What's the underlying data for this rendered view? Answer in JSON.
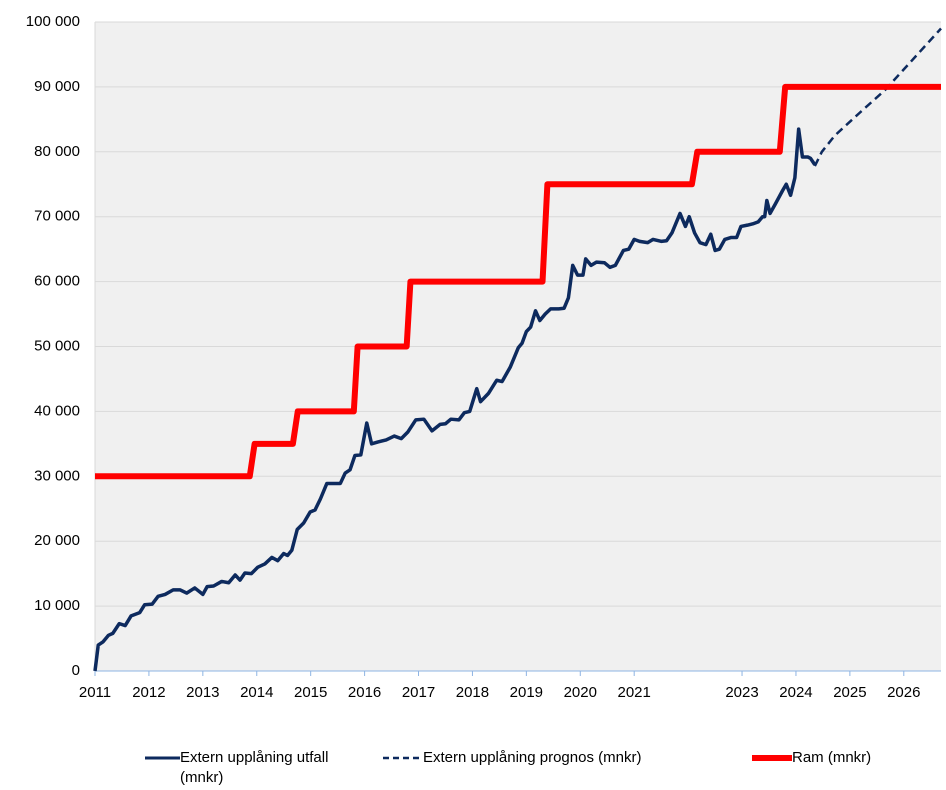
{
  "chart_data": {
    "type": "line",
    "xlim": [
      2011,
      2026.69
    ],
    "xticks": [
      2011,
      2012,
      2013,
      2014,
      2015,
      2016,
      2017,
      2018,
      2019,
      2020,
      2021,
      2023,
      2024,
      2025,
      2026
    ],
    "ylim": [
      0,
      100000
    ],
    "yticks": [
      0,
      {
        "value": 10000,
        "label": "10 000"
      },
      {
        "value": 20000,
        "label": "20 000"
      },
      {
        "value": 30000,
        "label": "30 000"
      },
      {
        "value": 40000,
        "label": "40 000"
      },
      {
        "value": 50000,
        "label": "50 000"
      },
      {
        "value": 60000,
        "label": "60 000"
      },
      {
        "value": 70000,
        "label": "70 000"
      },
      {
        "value": 80000,
        "label": "80 000"
      },
      {
        "value": 90000,
        "label": "90 000"
      },
      {
        "value": 100000,
        "label": "100 000"
      }
    ],
    "grid": true,
    "series": [
      {
        "name": "Extern upplåning utfall (mnkr)",
        "color": "#0d2a5e",
        "style": "solid",
        "x": [
          2011.0,
          2011.06,
          2011.15,
          2011.25,
          2011.33,
          2011.45,
          2011.56,
          2011.67,
          2011.83,
          2011.92,
          2012.06,
          2012.17,
          2012.3,
          2012.45,
          2012.58,
          2012.7,
          2012.85,
          2013.0,
          2013.08,
          2013.2,
          2013.35,
          2013.48,
          2013.6,
          2013.69,
          2013.78,
          2013.9,
          2014.02,
          2014.15,
          2014.28,
          2014.39,
          2014.5,
          2014.57,
          2014.65,
          2014.75,
          2014.87,
          2014.99,
          2015.08,
          2015.18,
          2015.3,
          2015.55,
          2015.64,
          2015.73,
          2015.82,
          2015.93,
          2016.04,
          2016.13,
          2016.25,
          2016.4,
          2016.55,
          2016.68,
          2016.8,
          2016.95,
          2017.1,
          2017.25,
          2017.4,
          2017.5,
          2017.6,
          2017.75,
          2017.85,
          2017.95,
          2018.08,
          2018.15,
          2018.3,
          2018.45,
          2018.55,
          2018.7,
          2018.85,
          2018.92,
          2019.0,
          2019.08,
          2019.17,
          2019.25,
          2019.35,
          2019.45,
          2019.6,
          2019.7,
          2019.78,
          2019.86,
          2019.95,
          2020.05,
          2020.1,
          2020.2,
          2020.3,
          2020.45,
          2020.55,
          2020.65,
          2020.8,
          2020.9,
          2021.0,
          2021.1,
          2021.25,
          2021.35,
          2021.5,
          2021.6,
          2021.7,
          2021.85,
          2021.95,
          2022.02,
          2022.12,
          2022.22,
          2022.33,
          2022.42,
          2022.5,
          2022.58,
          2022.68,
          2022.8,
          2022.9,
          2022.98,
          2023.1,
          2023.2,
          2023.3,
          2023.38,
          2023.42,
          2023.46,
          2023.52,
          2023.62,
          2023.75,
          2023.82,
          2023.9,
          2023.98,
          2024.05,
          2024.12,
          2024.22,
          2024.27,
          2024.35
        ],
        "values": [
          0,
          4000,
          4500,
          5500,
          5800,
          7300,
          7000,
          8500,
          9000,
          10200,
          10300,
          11500,
          11800,
          12500,
          12500,
          12000,
          12800,
          11800,
          13000,
          13100,
          13800,
          13600,
          14800,
          14000,
          15100,
          15000,
          16000,
          16500,
          17500,
          17000,
          18100,
          17800,
          18600,
          21800,
          22800,
          24500,
          24800,
          26500,
          28900,
          28900,
          30500,
          31000,
          33200,
          33300,
          38200,
          35000,
          35300,
          35600,
          36200,
          35800,
          36800,
          38700,
          38800,
          37000,
          38000,
          38100,
          38800,
          38700,
          39800,
          40000,
          43500,
          41500,
          42800,
          44800,
          44600,
          46800,
          49800,
          50500,
          52300,
          53000,
          55500,
          54000,
          55000,
          55800,
          55800,
          55900,
          57500,
          62500,
          61000,
          61000,
          63500,
          62500,
          63000,
          62900,
          62200,
          62500,
          64800,
          65000,
          66500,
          66200,
          66000,
          66500,
          66200,
          66300,
          67500,
          70500,
          68500,
          70000,
          67500,
          66000,
          65700,
          67300,
          64800,
          65000,
          66500,
          66800,
          66800,
          68500,
          68700,
          68900,
          69200,
          70000,
          70000,
          72500,
          70500,
          72000,
          74000,
          75000,
          73300,
          76000,
          83500,
          79200,
          79200,
          79000,
          78000
        ]
      },
      {
        "name": "Extern upplåning prognos (mnkr)",
        "color": "#0d2a5e",
        "style": "dashed",
        "x": [
          2024.35,
          2024.48,
          2024.72,
          2025.18,
          2025.65,
          2026.69
        ],
        "values": [
          77800,
          80000,
          82500,
          86000,
          89500,
          99000
        ]
      },
      {
        "name": "Ram (mnkr)",
        "color": "#ff0000",
        "style": "thick",
        "x": [
          2011,
          2013.87,
          2013.96,
          2014.67,
          2014.76,
          2015.8,
          2015.87,
          2016.78,
          2016.85,
          2019.3,
          2019.39,
          2022.07,
          2022.17,
          2023.7,
          2023.8,
          2026.69
        ],
        "values": [
          30000,
          30000,
          35000,
          35000,
          40000,
          40000,
          50000,
          50000,
          60000,
          60000,
          75000,
          75000,
          80000,
          80000,
          90000,
          90000
        ]
      }
    ]
  }
}
